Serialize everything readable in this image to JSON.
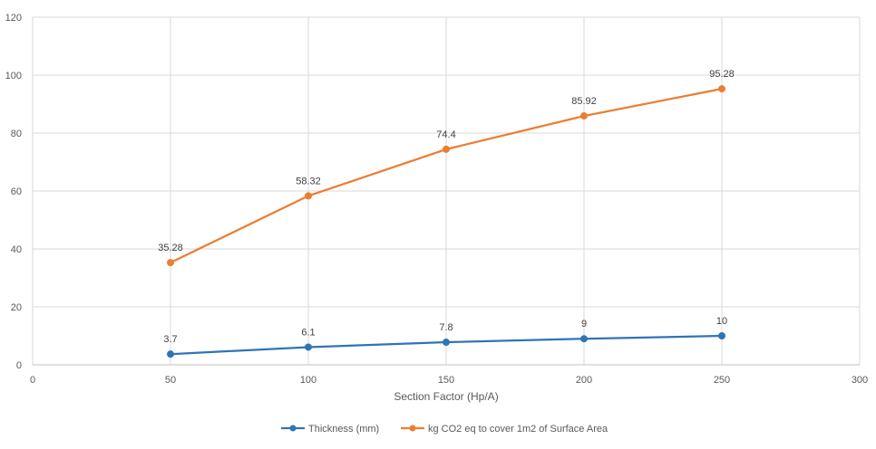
{
  "chart_data": {
    "type": "line",
    "title": "",
    "xlabel": "Section Factor (Hp/A)",
    "ylabel": "",
    "xlim": [
      0,
      300
    ],
    "ylim": [
      0,
      120
    ],
    "x_ticks": [
      0,
      50,
      100,
      150,
      200,
      250,
      300
    ],
    "y_ticks": [
      0,
      20,
      40,
      60,
      80,
      100,
      120
    ],
    "grid": true,
    "legend_position": "bottom",
    "series": [
      {
        "name": "Thickness (mm)",
        "color": "#2E75B6",
        "x": [
          50,
          100,
          150,
          200,
          250
        ],
        "values": [
          3.7,
          6.1,
          7.8,
          9,
          10
        ],
        "labels": [
          "3.7",
          "6.1",
          "7.8",
          "9",
          "10"
        ]
      },
      {
        "name": "kg CO2 eq to cover 1m2 of Surface Area",
        "color": "#ED7D31",
        "x": [
          50,
          100,
          150,
          200,
          250
        ],
        "values": [
          35.28,
          58.32,
          74.4,
          85.92,
          95.28
        ],
        "labels": [
          "35.28",
          "58.32",
          "74.4",
          "85.92",
          "95.28"
        ]
      }
    ]
  }
}
